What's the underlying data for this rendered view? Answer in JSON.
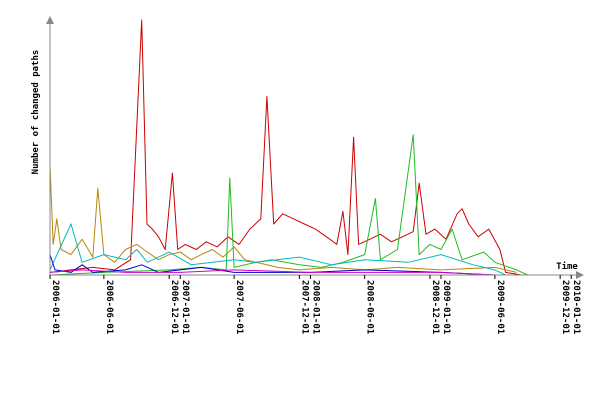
{
  "chart_data": {
    "type": "line",
    "title": "",
    "xlabel": "Time",
    "ylabel": "Number of changed paths",
    "grid": false,
    "legend": "none",
    "x_range": [
      "2006-01-01",
      "2010-01-20"
    ],
    "y_range": [
      0,
      100
    ],
    "x_ticks": [
      "2006-01-01",
      "2006-06-01",
      "2006-12-01",
      "2007-01-01",
      "2007-06-01",
      "2007-12-01",
      "2008-01-01",
      "2008-06-01",
      "2008-12-01",
      "2009-01-01",
      "2009-06-01",
      "2009-12-01",
      "2010-01-01"
    ],
    "series": [
      {
        "color": "#cc0000",
        "points": [
          [
            "2006-01-01",
            1
          ],
          [
            "2006-03-01",
            2
          ],
          [
            "2006-05-01",
            3
          ],
          [
            "2006-07-01",
            2
          ],
          [
            "2006-08-15",
            6
          ],
          [
            "2006-09-15",
            100
          ],
          [
            "2006-09-30",
            20
          ],
          [
            "2006-10-15",
            18
          ],
          [
            "2006-11-01",
            15
          ],
          [
            "2006-11-20",
            10
          ],
          [
            "2006-12-10",
            40
          ],
          [
            "2006-12-25",
            10
          ],
          [
            "2007-01-15",
            12
          ],
          [
            "2007-02-15",
            10
          ],
          [
            "2007-03-15",
            13
          ],
          [
            "2007-04-15",
            11
          ],
          [
            "2007-05-15",
            15
          ],
          [
            "2007-06-15",
            12
          ],
          [
            "2007-07-15",
            18
          ],
          [
            "2007-08-15",
            22
          ],
          [
            "2007-09-01",
            70
          ],
          [
            "2007-09-20",
            20
          ],
          [
            "2007-10-15",
            24
          ],
          [
            "2007-11-15",
            22
          ],
          [
            "2007-12-15",
            20
          ],
          [
            "2008-01-15",
            18
          ],
          [
            "2008-02-15",
            15
          ],
          [
            "2008-03-15",
            12
          ],
          [
            "2008-04-01",
            25
          ],
          [
            "2008-04-15",
            8
          ],
          [
            "2008-05-01",
            54
          ],
          [
            "2008-05-15",
            12
          ],
          [
            "2008-06-15",
            14
          ],
          [
            "2008-07-15",
            16
          ],
          [
            "2008-08-15",
            13
          ],
          [
            "2008-09-15",
            15
          ],
          [
            "2008-10-15",
            17
          ],
          [
            "2008-11-01",
            36
          ],
          [
            "2008-11-20",
            16
          ],
          [
            "2008-12-15",
            18
          ],
          [
            "2009-01-15",
            14
          ],
          [
            "2009-02-15",
            24
          ],
          [
            "2009-03-01",
            26
          ],
          [
            "2009-03-20",
            20
          ],
          [
            "2009-04-15",
            15
          ],
          [
            "2009-05-15",
            18
          ],
          [
            "2009-06-15",
            10
          ],
          [
            "2009-07-01",
            1
          ],
          [
            "2009-08-15",
            0
          ]
        ]
      },
      {
        "color": "#b8860b",
        "points": [
          [
            "2006-01-01",
            43
          ],
          [
            "2006-01-10",
            12
          ],
          [
            "2006-01-20",
            22
          ],
          [
            "2006-02-01",
            10
          ],
          [
            "2006-03-01",
            8
          ],
          [
            "2006-04-01",
            14
          ],
          [
            "2006-05-01",
            7
          ],
          [
            "2006-05-15",
            34
          ],
          [
            "2006-06-01",
            8
          ],
          [
            "2006-07-01",
            5
          ],
          [
            "2006-08-01",
            10
          ],
          [
            "2006-09-01",
            12
          ],
          [
            "2006-10-01",
            9
          ],
          [
            "2006-11-01",
            6
          ],
          [
            "2006-12-01",
            8
          ],
          [
            "2007-01-01",
            9
          ],
          [
            "2007-02-01",
            6
          ],
          [
            "2007-03-01",
            8
          ],
          [
            "2007-04-01",
            10
          ],
          [
            "2007-05-01",
            7
          ],
          [
            "2007-06-01",
            11
          ],
          [
            "2007-07-01",
            6
          ],
          [
            "2007-08-01",
            5
          ],
          [
            "2007-09-01",
            4
          ],
          [
            "2007-10-01",
            3
          ],
          [
            "2007-12-01",
            2
          ],
          [
            "2008-03-01",
            3
          ],
          [
            "2008-06-01",
            2
          ],
          [
            "2008-09-01",
            3
          ],
          [
            "2009-01-01",
            2
          ],
          [
            "2009-06-01",
            3
          ],
          [
            "2009-08-01",
            1
          ]
        ]
      },
      {
        "color": "#22bb22",
        "points": [
          [
            "2006-01-01",
            0
          ],
          [
            "2006-06-01",
            1
          ],
          [
            "2006-12-01",
            2
          ],
          [
            "2007-03-01",
            3
          ],
          [
            "2007-05-10",
            2
          ],
          [
            "2007-05-20",
            38
          ],
          [
            "2007-06-01",
            3
          ],
          [
            "2007-08-01",
            5
          ],
          [
            "2007-09-15",
            6
          ],
          [
            "2007-12-01",
            4
          ],
          [
            "2008-02-01",
            3
          ],
          [
            "2008-04-01",
            5
          ],
          [
            "2008-06-01",
            8
          ],
          [
            "2008-07-01",
            30
          ],
          [
            "2008-07-15",
            6
          ],
          [
            "2008-09-01",
            10
          ],
          [
            "2008-10-15",
            55
          ],
          [
            "2008-11-01",
            8
          ],
          [
            "2008-12-01",
            12
          ],
          [
            "2009-01-01",
            10
          ],
          [
            "2009-02-01",
            18
          ],
          [
            "2009-03-01",
            6
          ],
          [
            "2009-05-01",
            9
          ],
          [
            "2009-06-01",
            5
          ],
          [
            "2009-08-01",
            2
          ],
          [
            "2009-09-01",
            0
          ]
        ]
      },
      {
        "color": "#00bbbb",
        "points": [
          [
            "2006-01-01",
            2
          ],
          [
            "2006-03-01",
            20
          ],
          [
            "2006-04-01",
            5
          ],
          [
            "2006-06-01",
            8
          ],
          [
            "2006-08-01",
            6
          ],
          [
            "2006-09-01",
            10
          ],
          [
            "2006-10-01",
            5
          ],
          [
            "2006-12-01",
            9
          ],
          [
            "2007-02-01",
            4
          ],
          [
            "2007-06-01",
            6
          ],
          [
            "2007-08-01",
            5
          ],
          [
            "2007-12-01",
            7
          ],
          [
            "2008-03-01",
            4
          ],
          [
            "2008-06-01",
            6
          ],
          [
            "2008-10-01",
            5
          ],
          [
            "2009-01-01",
            8
          ],
          [
            "2009-04-01",
            4
          ],
          [
            "2009-06-01",
            2
          ],
          [
            "2009-07-01",
            0
          ]
        ]
      },
      {
        "color": "#0000cc",
        "points": [
          [
            "2006-01-01",
            8
          ],
          [
            "2006-01-15",
            2
          ],
          [
            "2006-03-01",
            1
          ],
          [
            "2006-04-01",
            4
          ],
          [
            "2006-05-01",
            1
          ],
          [
            "2006-08-01",
            2
          ],
          [
            "2006-09-15",
            4
          ],
          [
            "2006-11-01",
            1
          ],
          [
            "2007-01-01",
            2
          ],
          [
            "2007-03-01",
            3
          ],
          [
            "2007-06-01",
            1
          ],
          [
            "2008-01-01",
            1
          ],
          [
            "2008-06-01",
            2
          ],
          [
            "2009-01-01",
            1
          ],
          [
            "2009-06-01",
            0
          ]
        ]
      },
      {
        "color": "#cc00cc",
        "points": [
          [
            "2006-01-01",
            1
          ],
          [
            "2006-04-01",
            2
          ],
          [
            "2006-08-01",
            1
          ],
          [
            "2007-01-01",
            1
          ],
          [
            "2007-06-01",
            2
          ],
          [
            "2008-01-01",
            1
          ],
          [
            "2008-06-01",
            1
          ],
          [
            "2009-01-01",
            1
          ],
          [
            "2009-06-01",
            0
          ]
        ]
      }
    ]
  }
}
